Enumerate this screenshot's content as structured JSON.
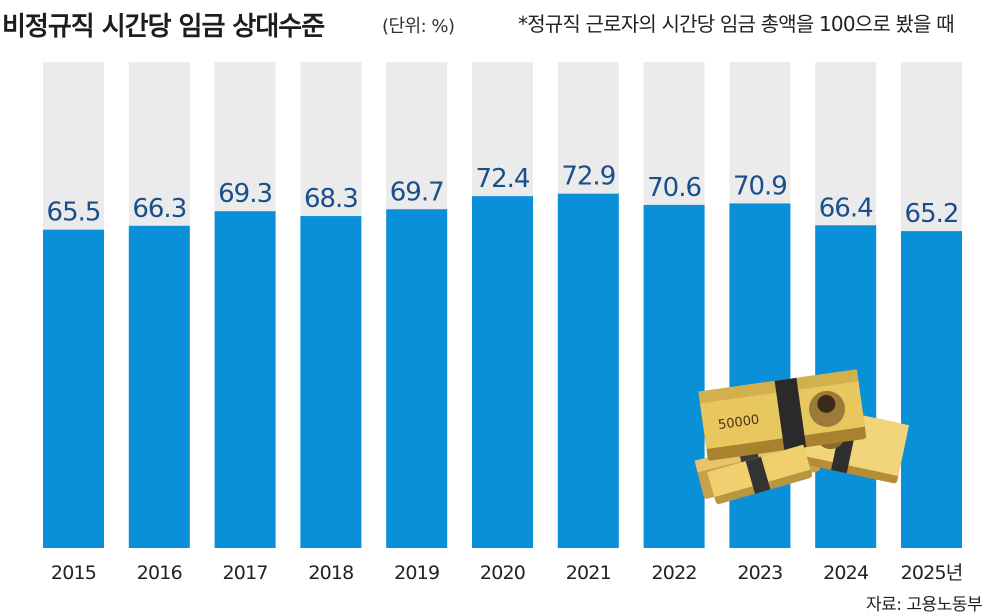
{
  "header": {
    "title": "비정규직 시간당 임금 상대수준",
    "unit": "(단위: %)",
    "note": "*정규직 근로자의 시간당 임금 총액을 100으로 봤을 때"
  },
  "footer": {
    "source": "자료: 고용노동부"
  },
  "colors": {
    "bar": "#0a8fd9",
    "track": "#ebebeb",
    "label": "#1a4f8a"
  },
  "illustration": {
    "banknote_denomination": "50000"
  },
  "chart_data": {
    "type": "bar",
    "categories": [
      "2015",
      "2016",
      "2017",
      "2018",
      "2019",
      "2020",
      "2021",
      "2022",
      "2023",
      "2024",
      "2025년"
    ],
    "values": [
      65.5,
      66.3,
      69.3,
      68.3,
      69.7,
      72.4,
      72.9,
      70.6,
      70.9,
      66.4,
      65.2
    ],
    "value_labels": [
      "65.5",
      "66.3",
      "69.3",
      "68.3",
      "69.7",
      "72.4",
      "72.9",
      "70.6",
      "70.9",
      "66.4",
      "65.2"
    ],
    "ylim": [
      0,
      100
    ],
    "grid": false,
    "legend": "none"
  }
}
